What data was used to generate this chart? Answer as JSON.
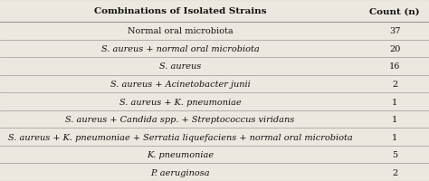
{
  "col1_header": "Combinations of Isolated Strains",
  "col2_header": "Count (n)",
  "rows": [
    {
      "label": "Normal oral microbiota",
      "italic": false,
      "count": "37"
    },
    {
      "label": "S. aureus + normal oral microbiota",
      "italic": true,
      "count": "20"
    },
    {
      "label": "S. aureus",
      "italic": true,
      "count": "16"
    },
    {
      "label": "S. aureus + Acinetobacter junii",
      "italic": true,
      "count": "2"
    },
    {
      "label": "S. aureus + K. pneumoniae",
      "italic": true,
      "count": "1"
    },
    {
      "label": "S. aureus + Candida spp. + Streptococcus viridans",
      "italic": true,
      "candida_special": true,
      "count": "1"
    },
    {
      "label": "S. aureus + K. pneumoniae + Serratia liquefaciens + normal oral microbiota",
      "italic": true,
      "count": "1"
    },
    {
      "label": "K. pneumoniae",
      "italic": true,
      "count": "5"
    },
    {
      "label": "P. aeruginosa",
      "italic": true,
      "count": "2"
    }
  ],
  "bg_color": "#ede8df",
  "line_color": "#999999",
  "header_fontsize": 7.5,
  "row_fontsize": 7.0,
  "fig_width": 4.74,
  "fig_height": 2.01,
  "col_split": 0.84
}
